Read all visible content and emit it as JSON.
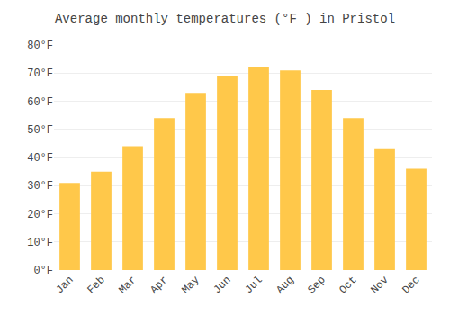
{
  "chart_data": {
    "type": "bar",
    "title": "Average monthly temperatures (°F ) in Pristol",
    "categories": [
      "Jan",
      "Feb",
      "Mar",
      "Apr",
      "May",
      "Jun",
      "Jul",
      "Aug",
      "Sep",
      "Oct",
      "Nov",
      "Dec"
    ],
    "values": [
      31,
      35,
      44,
      54,
      63,
      69,
      72,
      71,
      64,
      54,
      43,
      36
    ],
    "color": "#FFC84A",
    "ylim": [
      0,
      80
    ],
    "yticks": [
      {
        "value": 0,
        "label": "0°F"
      },
      {
        "value": 10,
        "label": "10°F"
      },
      {
        "value": 20,
        "label": "20°F"
      },
      {
        "value": 30,
        "label": "30°F"
      },
      {
        "value": 40,
        "label": "40°F"
      },
      {
        "value": 50,
        "label": "50°F"
      },
      {
        "value": 60,
        "label": "60°F"
      },
      {
        "value": 70,
        "label": "70°F"
      },
      {
        "value": 80,
        "label": "80°F"
      }
    ],
    "grid": true
  }
}
